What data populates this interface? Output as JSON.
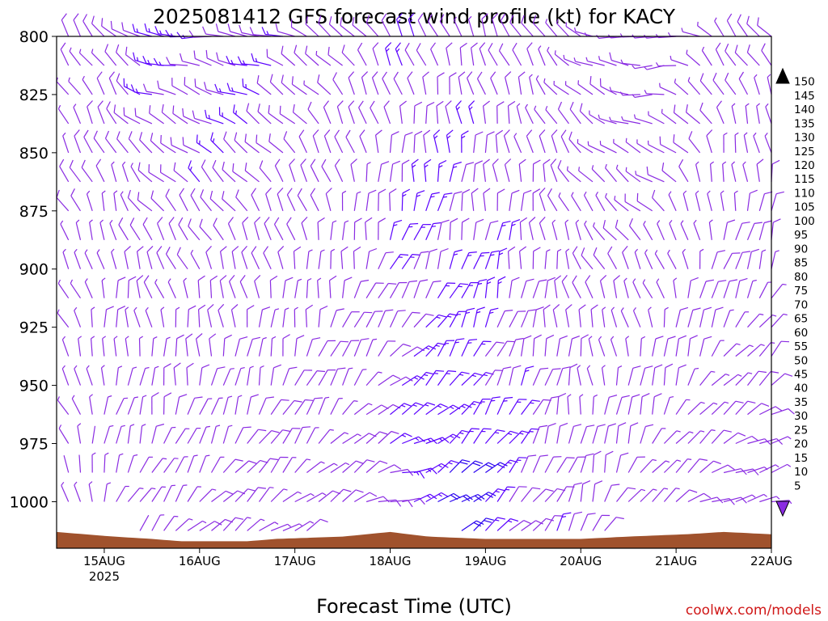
{
  "chart_data": {
    "type": "wind-barb profile",
    "title": "2025081412 GFS forecast wind profile (kt) for KACY",
    "xlabel": "Forecast Time (UTC)",
    "ylabel": "",
    "credit": "coolwx.com/models",
    "y_scale": "pressure (reversed, hPa)",
    "ylim": [
      800,
      1020
    ],
    "y_ticks": [
      800,
      825,
      850,
      875,
      900,
      925,
      950,
      975,
      1000
    ],
    "x_ticks": [
      {
        "t": 0.5,
        "label": "15AUG",
        "sublabel": "2025"
      },
      {
        "t": 1.5,
        "label": "16AUG"
      },
      {
        "t": 2.5,
        "label": "17AUG"
      },
      {
        "t": 3.5,
        "label": "18AUG"
      },
      {
        "t": 4.5,
        "label": "19AUG"
      },
      {
        "t": 5.5,
        "label": "20AUG"
      },
      {
        "t": 6.5,
        "label": "21AUG"
      },
      {
        "t": 7.5,
        "label": "22AUG"
      }
    ],
    "levels": [
      800,
      812.5,
      825,
      837.5,
      850,
      862.5,
      875,
      887.5,
      900,
      912.5,
      925,
      937.5,
      950,
      962.5,
      975,
      987.5,
      1000,
      1012.5
    ],
    "time_start": 0,
    "time_end": 7.5,
    "time_step_days": 0.125,
    "barb_keyframes": [
      {
        "t": 0.0,
        "dir_top": 330,
        "dir_bottom": 320,
        "spd_top": 10,
        "spd_bottom": 6
      },
      {
        "t": 0.6,
        "dir_top": 320,
        "dir_bottom": 30,
        "spd_top": 12,
        "spd_bottom": 6
      },
      {
        "t": 1.0,
        "dir_top": 275,
        "dir_bottom": 40,
        "spd_top": 15,
        "spd_bottom": 7
      },
      {
        "t": 2.0,
        "dir_top": 275,
        "dir_bottom": 55,
        "spd_top": 15,
        "spd_bottom": 10
      },
      {
        "t": 2.7,
        "dir_top": 300,
        "dir_bottom": 60,
        "spd_top": 12,
        "spd_bottom": 10
      },
      {
        "t": 3.2,
        "dir_top": 320,
        "dir_bottom": 70,
        "spd_top": 12,
        "spd_bottom": 10
      },
      {
        "t": 3.6,
        "dir_top": 330,
        "dir_bottom": 90,
        "spd_top": 14,
        "spd_bottom": 16
      },
      {
        "t": 4.2,
        "dir_top": 340,
        "dir_bottom": 60,
        "spd_top": 12,
        "spd_bottom": 22
      },
      {
        "t": 5.0,
        "dir_top": 330,
        "dir_bottom": 40,
        "spd_top": 10,
        "spd_bottom": 14
      },
      {
        "t": 5.6,
        "dir_top": 290,
        "dir_bottom": 20,
        "spd_top": 8,
        "spd_bottom": 12
      },
      {
        "t": 6.3,
        "dir_top": 250,
        "dir_bottom": 60,
        "spd_top": 8,
        "spd_bottom": 10
      },
      {
        "t": 7.0,
        "dir_top": 320,
        "dir_bottom": 80,
        "spd_top": 10,
        "spd_bottom": 10
      },
      {
        "t": 7.5,
        "dir_top": 320,
        "dir_bottom": 90,
        "spd_top": 10,
        "spd_bottom": 10
      }
    ],
    "surface_pressure": [
      {
        "t": 0.0,
        "p": 1013
      },
      {
        "t": 0.6,
        "p": 1015
      },
      {
        "t": 1.0,
        "p": 1016
      },
      {
        "t": 1.3,
        "p": 1017
      },
      {
        "t": 2.0,
        "p": 1017
      },
      {
        "t": 2.3,
        "p": 1016
      },
      {
        "t": 3.0,
        "p": 1015
      },
      {
        "t": 3.5,
        "p": 1013
      },
      {
        "t": 3.9,
        "p": 1015
      },
      {
        "t": 4.5,
        "p": 1016
      },
      {
        "t": 5.0,
        "p": 1016
      },
      {
        "t": 5.5,
        "p": 1016
      },
      {
        "t": 6.0,
        "p": 1015
      },
      {
        "t": 6.6,
        "p": 1014
      },
      {
        "t": 7.0,
        "p": 1013
      },
      {
        "t": 7.5,
        "p": 1014
      }
    ],
    "colorbar": {
      "labels": [
        "5",
        "10",
        "15",
        "20",
        "25",
        "30",
        "35",
        "40",
        "45",
        "50",
        "55",
        "60",
        "65",
        "70",
        "75",
        "80",
        "85",
        "90",
        "95",
        "100",
        "105",
        "110",
        "115",
        "120",
        "125",
        "130",
        "135",
        "140",
        "145",
        "150"
      ],
      "colors": [
        "#8a2be2",
        "#5a00ff",
        "#2800f0",
        "#0010d8",
        "#0040e8",
        "#0070f0",
        "#00a0ff",
        "#00c8ff",
        "#00e8e0",
        "#00f0b0",
        "#00f080",
        "#00e040",
        "#20d020",
        "#60f000",
        "#b0ff00",
        "#f0ff00",
        "#ffe000",
        "#ffc800",
        "#ffb000",
        "#ff9800",
        "#ff8000",
        "#ff6000",
        "#ff3000",
        "#ff0000",
        "#ff0048",
        "#f00070",
        "#e80090",
        "#e000b0",
        "#f000e0",
        "#ff00ff"
      ]
    },
    "colors": {
      "ground": "#a0522d",
      "barb_slow": "#8a2be2",
      "barb_mid": "#5a00ff",
      "barb_fast": "#2800f0"
    }
  }
}
